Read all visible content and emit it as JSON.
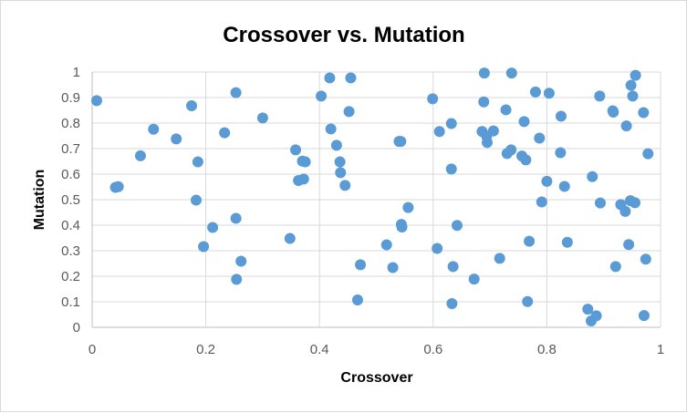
{
  "chart_data": {
    "type": "scatter",
    "title": "Crossover vs. Mutation",
    "xlabel": "Crossover",
    "ylabel": "Mutation",
    "xlim": [
      0,
      1
    ],
    "ylim": [
      0,
      1
    ],
    "x_ticks": [
      "0",
      "0.2",
      "0.4",
      "0.6",
      "0.8",
      "1"
    ],
    "y_ticks": [
      "0",
      "0.1",
      "0.2",
      "0.3",
      "0.4",
      "0.5",
      "0.6",
      "0.7",
      "0.8",
      "0.9",
      "1"
    ],
    "grid": true,
    "point_color": "#5b9bd5",
    "points": [
      [
        0.008,
        0.888
      ],
      [
        0.041,
        0.548
      ],
      [
        0.046,
        0.551
      ],
      [
        0.085,
        0.672
      ],
      [
        0.108,
        0.776
      ],
      [
        0.148,
        0.738
      ],
      [
        0.175,
        0.868
      ],
      [
        0.183,
        0.498
      ],
      [
        0.186,
        0.648
      ],
      [
        0.196,
        0.316
      ],
      [
        0.212,
        0.391
      ],
      [
        0.233,
        0.762
      ],
      [
        0.253,
        0.919
      ],
      [
        0.253,
        0.427
      ],
      [
        0.254,
        0.188
      ],
      [
        0.262,
        0.259
      ],
      [
        0.3,
        0.82
      ],
      [
        0.348,
        0.348
      ],
      [
        0.358,
        0.695
      ],
      [
        0.363,
        0.575
      ],
      [
        0.37,
        0.651
      ],
      [
        0.372,
        0.581
      ],
      [
        0.375,
        0.648
      ],
      [
        0.403,
        0.906
      ],
      [
        0.418,
        0.977
      ],
      [
        0.42,
        0.777
      ],
      [
        0.43,
        0.713
      ],
      [
        0.436,
        0.648
      ],
      [
        0.437,
        0.606
      ],
      [
        0.445,
        0.556
      ],
      [
        0.452,
        0.845
      ],
      [
        0.455,
        0.977
      ],
      [
        0.467,
        0.107
      ],
      [
        0.472,
        0.245
      ],
      [
        0.518,
        0.323
      ],
      [
        0.529,
        0.234
      ],
      [
        0.54,
        0.728
      ],
      [
        0.543,
        0.728
      ],
      [
        0.544,
        0.403
      ],
      [
        0.545,
        0.393
      ],
      [
        0.556,
        0.469
      ],
      [
        0.599,
        0.895
      ],
      [
        0.607,
        0.309
      ],
      [
        0.611,
        0.767
      ],
      [
        0.632,
        0.798
      ],
      [
        0.632,
        0.62
      ],
      [
        0.633,
        0.093
      ],
      [
        0.635,
        0.238
      ],
      [
        0.642,
        0.399
      ],
      [
        0.672,
        0.189
      ],
      [
        0.686,
        0.767
      ],
      [
        0.689,
        0.883
      ],
      [
        0.69,
        0.996
      ],
      [
        0.694,
        0.749
      ],
      [
        0.695,
        0.724
      ],
      [
        0.706,
        0.769
      ],
      [
        0.717,
        0.27
      ],
      [
        0.728,
        0.852
      ],
      [
        0.73,
        0.681
      ],
      [
        0.737,
        0.695
      ],
      [
        0.738,
        0.996
      ],
      [
        0.756,
        0.671
      ],
      [
        0.76,
        0.806
      ],
      [
        0.763,
        0.656
      ],
      [
        0.766,
        0.101
      ],
      [
        0.769,
        0.337
      ],
      [
        0.78,
        0.922
      ],
      [
        0.787,
        0.741
      ],
      [
        0.791,
        0.491
      ],
      [
        0.8,
        0.572
      ],
      [
        0.804,
        0.917
      ],
      [
        0.824,
        0.684
      ],
      [
        0.825,
        0.827
      ],
      [
        0.831,
        0.552
      ],
      [
        0.836,
        0.333
      ],
      [
        0.872,
        0.071
      ],
      [
        0.878,
        0.025
      ],
      [
        0.88,
        0.59
      ],
      [
        0.887,
        0.045
      ],
      [
        0.893,
        0.906
      ],
      [
        0.894,
        0.487
      ],
      [
        0.916,
        0.848
      ],
      [
        0.917,
        0.843
      ],
      [
        0.921,
        0.238
      ],
      [
        0.93,
        0.481
      ],
      [
        0.938,
        0.454
      ],
      [
        0.94,
        0.789
      ],
      [
        0.944,
        0.324
      ],
      [
        0.947,
        0.496
      ],
      [
        0.948,
        0.948
      ],
      [
        0.951,
        0.906
      ],
      [
        0.955,
        0.488
      ],
      [
        0.956,
        0.987
      ],
      [
        0.97,
        0.841
      ],
      [
        0.971,
        0.046
      ],
      [
        0.974,
        0.267
      ],
      [
        0.978,
        0.68
      ]
    ]
  }
}
